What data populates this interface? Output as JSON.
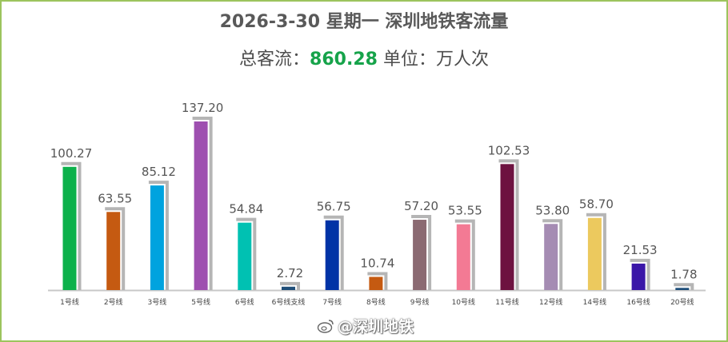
{
  "header": {
    "title": "2026-3-30 星期一  深圳地铁客流量",
    "subtitle_prefix": "总客流：",
    "total": "860.28",
    "subtitle_suffix": " 单位：万人次"
  },
  "watermark": {
    "text": "@深圳地铁",
    "icon": "weibo-icon"
  },
  "chart_data": {
    "type": "bar",
    "title": "2026-3-30 星期一  深圳地铁客流量",
    "unit": "万人次",
    "categories": [
      "1号线",
      "2号线",
      "3号线",
      "5号线",
      "6号线",
      "6号线支线",
      "7号线",
      "8号线",
      "9号线",
      "10号线",
      "11号线",
      "12号线",
      "14号线",
      "16号线",
      "20号线"
    ],
    "values": [
      100.27,
      63.55,
      85.12,
      137.2,
      54.84,
      2.72,
      56.75,
      10.74,
      57.2,
      53.55,
      102.53,
      53.8,
      58.7,
      21.53,
      1.78
    ],
    "value_labels": [
      "100.27",
      "63.55",
      "85.12",
      "137.20",
      "54.84",
      "2.72",
      "56.75",
      "10.74",
      "57.20",
      "53.55",
      "102.53",
      "53.80",
      "58.70",
      "21.53",
      "1.78"
    ],
    "colors": [
      "#0cb14b",
      "#c55a11",
      "#00a3df",
      "#9e4fb0",
      "#00c1b2",
      "#1f4e79",
      "#0033a6",
      "#c55a11",
      "#8b6a72",
      "#f37a94",
      "#6d1240",
      "#a58cb3",
      "#ecc95e",
      "#3a16a8",
      "#1f4e79"
    ],
    "ylim": [
      0,
      150
    ],
    "grid": false,
    "legend": "none"
  }
}
